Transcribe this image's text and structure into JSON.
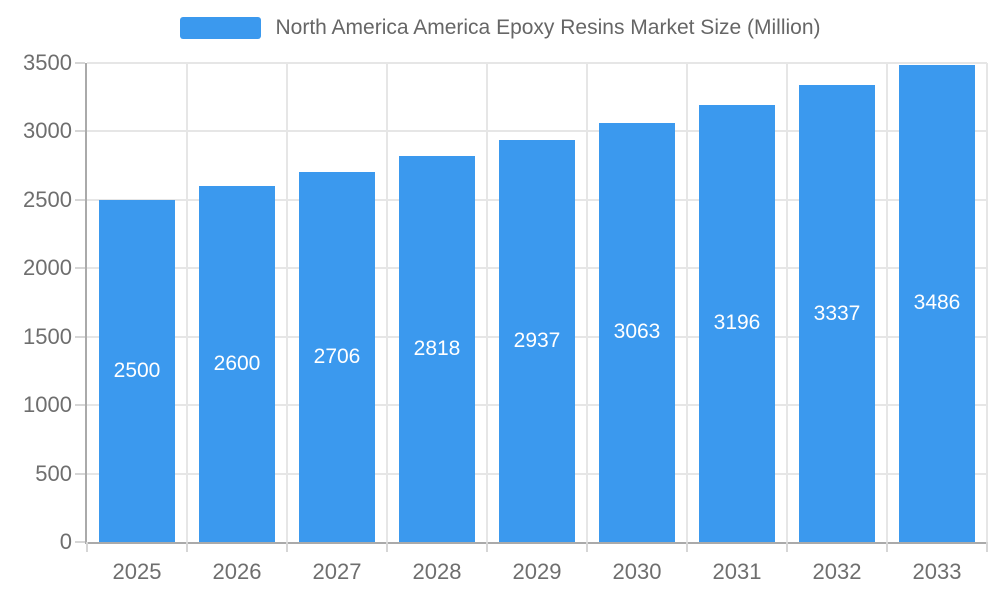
{
  "chart_data": {
    "type": "bar",
    "title": "North America America Epoxy Resins Market Size (Million)",
    "categories": [
      "2025",
      "2026",
      "2027",
      "2028",
      "2029",
      "2030",
      "2031",
      "2032",
      "2033"
    ],
    "series": [
      {
        "name": "North America America Epoxy Resins Market Size (Million)",
        "values": [
          2500,
          2600,
          2706,
          2818,
          2937,
          3063,
          3196,
          3337,
          3486
        ],
        "color": "#3b99ee"
      }
    ],
    "xlabel": "",
    "ylabel": "",
    "ylim": [
      0,
      3500
    ],
    "ytick_step": 500,
    "yticks": [
      0,
      500,
      1000,
      1500,
      2000,
      2500,
      3000,
      3500
    ],
    "grid": "on",
    "legend_position": "top",
    "value_labels": "inside-center"
  },
  "colors": {
    "bar": "#3b99ee",
    "gridline": "#e6e6e6",
    "axis_line": "#aaaaaa",
    "tick_mark": "#d6d6d6",
    "axis_text": "#6e6e6e",
    "legend_text": "#666666",
    "value_label_text": "#ffffff",
    "background": "#ffffff"
  }
}
